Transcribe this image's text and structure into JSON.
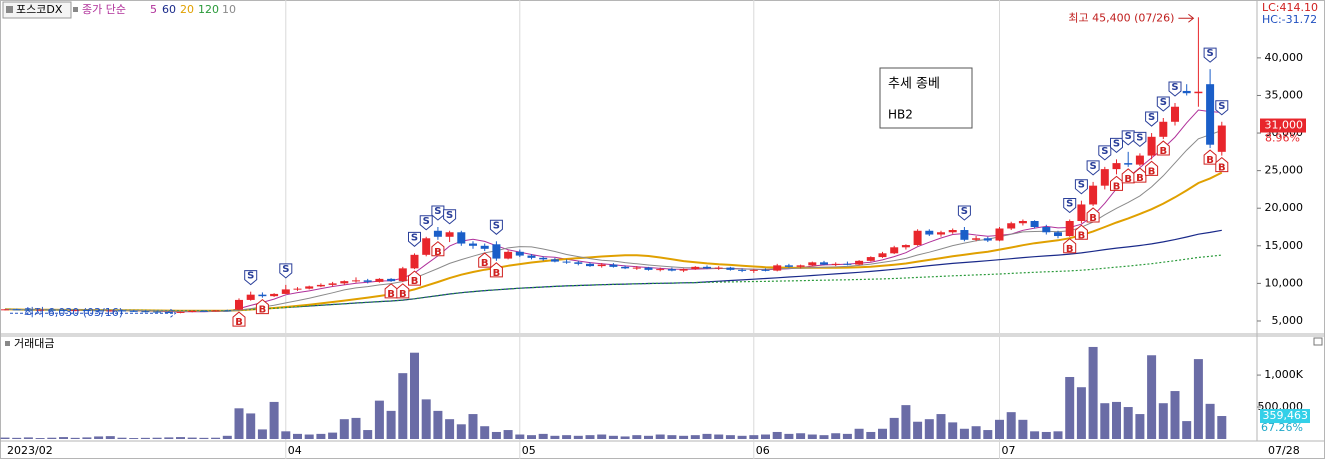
{
  "chart_data": {
    "type": "candlestick",
    "stock_name": "포스코DX",
    "ma_label": "종가 단순",
    "moving_averages": [
      {
        "period": 5,
        "color": "#b0309a"
      },
      {
        "period": 60,
        "color": "#1a2a8a"
      },
      {
        "period": 20,
        "color": "#e0a000"
      },
      {
        "period": 120,
        "color": "#2a9a3a"
      },
      {
        "period": 10,
        "color": "#8a8a8a"
      }
    ],
    "lc_label": "LC:414.10",
    "hc_label": "HC:-31.72",
    "categories": [
      "2023/02",
      null,
      null,
      null,
      null,
      null,
      null,
      null,
      null,
      null,
      null,
      null,
      null,
      null,
      null,
      null,
      null,
      null,
      null,
      null,
      null,
      null,
      null,
      null,
      "04",
      null,
      null,
      null,
      null,
      null,
      null,
      null,
      null,
      null,
      null,
      null,
      null,
      null,
      null,
      null,
      null,
      null,
      null,
      null,
      "05",
      null,
      null,
      null,
      null,
      null,
      null,
      null,
      null,
      null,
      null,
      null,
      null,
      null,
      null,
      null,
      null,
      null,
      null,
      null,
      "06",
      null,
      null,
      null,
      null,
      null,
      null,
      null,
      null,
      null,
      null,
      null,
      null,
      null,
      null,
      null,
      null,
      null,
      null,
      null,
      null,
      "07",
      null,
      null,
      null,
      null,
      null,
      null,
      null,
      null,
      null,
      null,
      null,
      null,
      null,
      null,
      null,
      null,
      null,
      null,
      null
    ],
    "last_date": "07/28",
    "ohlc": [
      [
        6500,
        6600,
        6400,
        6550
      ],
      [
        6550,
        6650,
        6450,
        6500
      ],
      [
        6500,
        6600,
        6400,
        6450
      ],
      [
        6450,
        6550,
        6350,
        6500
      ],
      [
        6500,
        6600,
        6400,
        6450
      ],
      [
        6450,
        6550,
        6350,
        6400
      ],
      [
        6400,
        6500,
        6300,
        6450
      ],
      [
        6450,
        6550,
        6350,
        6400
      ],
      [
        6400,
        6500,
        6300,
        6350
      ],
      [
        6350,
        6450,
        6250,
        6400
      ],
      [
        6400,
        6500,
        6300,
        6350
      ],
      [
        6350,
        6450,
        6200,
        6300
      ],
      [
        6300,
        6400,
        6150,
        6250
      ],
      [
        6250,
        6350,
        6100,
        6200
      ],
      [
        6200,
        6300,
        6050,
        6150
      ],
      [
        6150,
        6250,
        6030,
        6200
      ],
      [
        6200,
        6400,
        6150,
        6350
      ],
      [
        6350,
        6450,
        6250,
        6300
      ],
      [
        6300,
        6450,
        6250,
        6400
      ],
      [
        6400,
        6500,
        6300,
        6350
      ],
      [
        6500,
        8000,
        6450,
        7800
      ],
      [
        7800,
        8900,
        7700,
        8500
      ],
      [
        8500,
        8800,
        8100,
        8300
      ],
      [
        8300,
        8700,
        8200,
        8600
      ],
      [
        8600,
        9800,
        8600,
        9200
      ],
      [
        9200,
        9500,
        9000,
        9300
      ],
      [
        9300,
        9700,
        9200,
        9600
      ],
      [
        9600,
        10000,
        9500,
        9800
      ],
      [
        9800,
        10200,
        9600,
        10000
      ],
      [
        10000,
        10400,
        9800,
        10300
      ],
      [
        10300,
        10800,
        10100,
        10400
      ],
      [
        10400,
        10600,
        10000,
        10200
      ],
      [
        10200,
        10700,
        10100,
        10600
      ],
      [
        10600,
        10700,
        10200,
        10300
      ],
      [
        10300,
        12200,
        10200,
        12000
      ],
      [
        12000,
        14000,
        11900,
        13800
      ],
      [
        13800,
        16200,
        13600,
        16000
      ],
      [
        17000,
        17500,
        15800,
        16200
      ],
      [
        16200,
        17000,
        15500,
        16800
      ],
      [
        16800,
        17000,
        15000,
        15300
      ],
      [
        15300,
        15600,
        14600,
        15000
      ],
      [
        15000,
        15300,
        14300,
        14600
      ],
      [
        15200,
        15600,
        13000,
        13300
      ],
      [
        13300,
        14400,
        13200,
        14200
      ],
      [
        14200,
        14500,
        13500,
        13700
      ],
      [
        13700,
        13900,
        13200,
        13400
      ],
      [
        13400,
        13600,
        13000,
        13200
      ],
      [
        13200,
        13400,
        12800,
        12900
      ],
      [
        12900,
        13200,
        12600,
        12800
      ],
      [
        12800,
        13000,
        12400,
        12600
      ],
      [
        12600,
        12800,
        12200,
        12300
      ],
      [
        12300,
        12700,
        12100,
        12500
      ],
      [
        12500,
        12700,
        12100,
        12200
      ],
      [
        12200,
        12400,
        11900,
        12000
      ],
      [
        12000,
        12300,
        11800,
        12100
      ],
      [
        12100,
        12200,
        11700,
        11800
      ],
      [
        11800,
        12100,
        11600,
        11900
      ],
      [
        11900,
        12100,
        11600,
        11700
      ],
      [
        11700,
        12000,
        11500,
        11900
      ],
      [
        11900,
        12300,
        11800,
        12200
      ],
      [
        12200,
        12400,
        11900,
        12000
      ],
      [
        12000,
        12300,
        11800,
        12100
      ],
      [
        12100,
        12200,
        11700,
        11800
      ],
      [
        11800,
        12000,
        11500,
        11700
      ],
      [
        11700,
        11900,
        11400,
        11800
      ],
      [
        11800,
        12000,
        11600,
        11700
      ],
      [
        11700,
        12600,
        11600,
        12400
      ],
      [
        12400,
        12600,
        12100,
        12200
      ],
      [
        12200,
        12500,
        12000,
        12400
      ],
      [
        12400,
        12900,
        12300,
        12800
      ],
      [
        12800,
        13000,
        12400,
        12500
      ],
      [
        12500,
        12800,
        12300,
        12600
      ],
      [
        12600,
        12900,
        12400,
        12500
      ],
      [
        12500,
        13100,
        12400,
        13000
      ],
      [
        13000,
        13600,
        12900,
        13500
      ],
      [
        13500,
        14200,
        13400,
        14000
      ],
      [
        14000,
        15000,
        13900,
        14800
      ],
      [
        14800,
        15200,
        14500,
        15100
      ],
      [
        15100,
        17200,
        15000,
        17000
      ],
      [
        17000,
        17200,
        16300,
        16500
      ],
      [
        16500,
        17000,
        16200,
        16800
      ],
      [
        16800,
        17300,
        16600,
        17100
      ],
      [
        17100,
        17500,
        15600,
        15800
      ],
      [
        15800,
        16300,
        15600,
        16000
      ],
      [
        16000,
        16200,
        15500,
        15700
      ],
      [
        15700,
        17500,
        15600,
        17300
      ],
      [
        17300,
        18200,
        17100,
        18000
      ],
      [
        18000,
        18500,
        17700,
        18300
      ],
      [
        18300,
        18400,
        17300,
        17500
      ],
      [
        17500,
        17800,
        16500,
        16800
      ],
      [
        16800,
        17000,
        16000,
        16300
      ],
      [
        16300,
        18500,
        16200,
        18300
      ],
      [
        18300,
        21000,
        18000,
        20500
      ],
      [
        20500,
        23500,
        20300,
        23000
      ],
      [
        23000,
        25500,
        22500,
        25200
      ],
      [
        25200,
        26500,
        24500,
        26000
      ],
      [
        26000,
        27500,
        25500,
        25800
      ],
      [
        25800,
        27300,
        25600,
        27000
      ],
      [
        27000,
        30000,
        26500,
        29500
      ],
      [
        29500,
        32000,
        29200,
        31500
      ],
      [
        31500,
        34000,
        31000,
        33500
      ],
      [
        35600,
        36500,
        35000,
        35300
      ],
      [
        35300,
        45400,
        33500,
        35500
      ],
      [
        36500,
        38500,
        28000,
        28450
      ],
      [
        27500,
        31500,
        27000,
        31000
      ]
    ],
    "up_color": "#e8262c",
    "down_color": "#1a5ec8",
    "buy_signals": [
      null,
      null,
      null,
      null,
      null,
      null,
      null,
      null,
      null,
      null,
      null,
      null,
      null,
      null,
      null,
      null,
      null,
      null,
      null,
      null,
      "B",
      null,
      "B",
      null,
      null,
      null,
      null,
      null,
      null,
      null,
      null,
      null,
      null,
      "B",
      "B",
      "B",
      null,
      "B",
      null,
      null,
      null,
      "B",
      "B",
      null,
      null,
      null,
      null,
      null,
      null,
      null,
      null,
      null,
      null,
      null,
      null,
      null,
      null,
      null,
      null,
      null,
      null,
      null,
      null,
      null,
      null,
      null,
      null,
      null,
      null,
      null,
      null,
      null,
      null,
      null,
      null,
      null,
      null,
      null,
      null,
      null,
      null,
      null,
      null,
      null,
      null,
      null,
      null,
      null,
      null,
      null,
      null,
      "B",
      "B",
      "B",
      null,
      "B",
      "B",
      "B",
      "B",
      "B",
      null,
      null,
      null,
      "B",
      "B"
    ],
    "sell_signals": [
      null,
      null,
      null,
      null,
      null,
      null,
      null,
      null,
      null,
      null,
      null,
      null,
      null,
      null,
      null,
      null,
      null,
      null,
      null,
      null,
      null,
      "S",
      null,
      null,
      "S",
      null,
      null,
      null,
      null,
      null,
      null,
      null,
      null,
      null,
      null,
      "S",
      "S",
      "S",
      "S",
      null,
      null,
      null,
      "S",
      null,
      null,
      null,
      null,
      null,
      null,
      null,
      null,
      null,
      null,
      null,
      null,
      null,
      null,
      null,
      null,
      null,
      null,
      null,
      null,
      null,
      null,
      null,
      null,
      null,
      null,
      null,
      null,
      null,
      null,
      null,
      null,
      null,
      null,
      null,
      null,
      null,
      null,
      null,
      "S",
      null,
      null,
      null,
      null,
      null,
      null,
      null,
      null,
      "S",
      "S",
      "S",
      "S",
      "S",
      "S",
      "S",
      "S",
      "S",
      "S",
      null,
      null,
      "S",
      "S"
    ],
    "ylim": [
      3400,
      47300
    ],
    "yticks": [
      {
        "value": 5000,
        "label": "5,000"
      },
      {
        "value": 10000,
        "label": "10,000"
      },
      {
        "value": 15000,
        "label": "15,000"
      },
      {
        "value": 20000,
        "label": "20,000"
      },
      {
        "value": 25000,
        "label": "25,000"
      },
      {
        "value": 30000,
        "label": "30,000"
      },
      {
        "value": 35000,
        "label": "35,000"
      },
      {
        "value": 40000,
        "label": "40,000"
      }
    ],
    "high_annotation": "최고 45,400 (07/26)",
    "low_annotation": "최저 6,030 (03/16)",
    "last_price": {
      "value": 31000,
      "label": "31,000"
    },
    "change": {
      "value": 8.96,
      "label": "8.96%"
    },
    "signal_box": {
      "title": "추세 종베",
      "text": "HB2"
    },
    "volume": {
      "title": "거래대금",
      "color": "#6a6ca6",
      "values": [
        22000,
        18000,
        25000,
        15000,
        20000,
        30000,
        18000,
        25000,
        40000,
        45000,
        20000,
        15000,
        18000,
        20000,
        25000,
        30000,
        22000,
        18000,
        20000,
        50000,
        480000,
        400000,
        150000,
        580000,
        120000,
        80000,
        70000,
        80000,
        100000,
        310000,
        330000,
        140000,
        600000,
        440000,
        1030000,
        1350000,
        620000,
        440000,
        310000,
        230000,
        390000,
        200000,
        110000,
        140000,
        70000,
        60000,
        80000,
        50000,
        60000,
        50000,
        60000,
        70000,
        50000,
        40000,
        60000,
        50000,
        70000,
        60000,
        50000,
        60000,
        80000,
        70000,
        60000,
        50000,
        60000,
        70000,
        110000,
        80000,
        90000,
        70000,
        60000,
        90000,
        80000,
        160000,
        110000,
        160000,
        330000,
        530000,
        270000,
        310000,
        390000,
        260000,
        160000,
        200000,
        140000,
        300000,
        420000,
        300000,
        120000,
        110000,
        120000,
        970000,
        810000,
        1440000,
        560000,
        580000,
        500000,
        390000,
        1310000,
        560000,
        750000,
        280000,
        1250000,
        550000,
        359463
      ],
      "ylim": [
        0,
        1580000
      ],
      "yticks": [
        {
          "value": 500000,
          "label": "500,000"
        },
        {
          "value": 1000000,
          "label": "1,000K"
        }
      ],
      "last": {
        "value": 359463,
        "label": "359,463"
      },
      "ratio": {
        "value": 67.26,
        "label": "67.26%"
      }
    }
  }
}
